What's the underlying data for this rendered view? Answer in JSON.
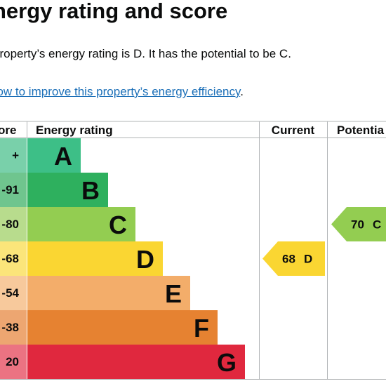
{
  "page": {
    "title": "nergy rating and score",
    "intro": "property’s energy rating is D. It has the potential to be C.",
    "improve_link": "how to improve this property’s energy efficiency",
    "improve_suffix": "."
  },
  "chart_data": {
    "type": "table",
    "columns": [
      "ore",
      "Energy rating",
      "Current",
      "Potentia"
    ],
    "bands": [
      {
        "score": "+",
        "letter": "A",
        "color": "#3dbf87",
        "score_bg": "#79d0aa"
      },
      {
        "score": "-91",
        "letter": "B",
        "color": "#2eb05e",
        "score_bg": "#6fc58e"
      },
      {
        "score": "-80",
        "letter": "C",
        "color": "#93cd51",
        "score_bg": "#b8dc8d"
      },
      {
        "score": "-68",
        "letter": "D",
        "color": "#fad632",
        "score_bg": "#fbe57a"
      },
      {
        "score": "-54",
        "letter": "E",
        "color": "#f3ad6a",
        "score_bg": "#f7c99c"
      },
      {
        "score": "-38",
        "letter": "F",
        "color": "#e68231",
        "score_bg": "#eda671"
      },
      {
        "score": "20",
        "letter": "G",
        "color": "#e0283e",
        "score_bg": "#eb7382"
      }
    ],
    "current": {
      "score": "68",
      "letter": "D",
      "band": "D",
      "color": "#fad632"
    },
    "potential": {
      "score": "70",
      "letter": "C",
      "band": "C",
      "color": "#93cd51"
    }
  }
}
